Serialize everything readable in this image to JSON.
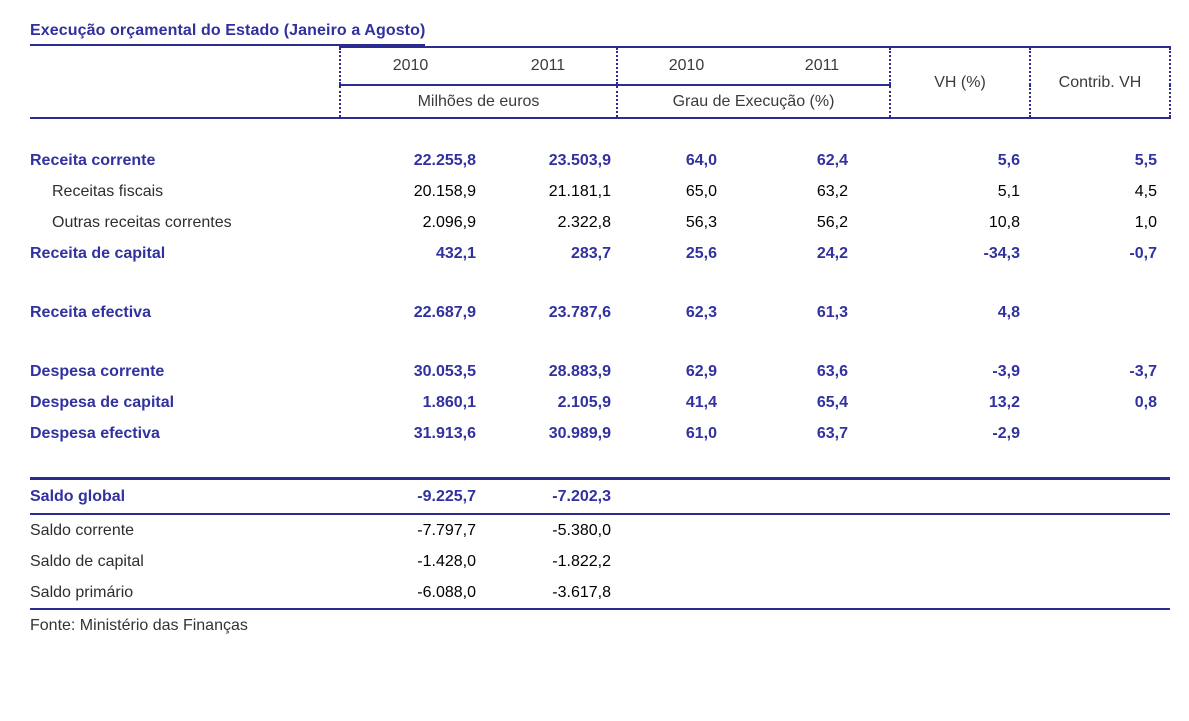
{
  "title": "Execução orçamental do  Estado (Janeiro a Agosto)",
  "header": {
    "millions_2010": "2010",
    "millions_2011": "2011",
    "millions_group": "Milhões de euros",
    "execution_2010": "2010",
    "execution_2011": "2011",
    "execution_group": "Grau de Execução (%)",
    "vh": "VH (%)",
    "contrib_vh": "Contrib. VH"
  },
  "rows": [
    {
      "label": "Receita corrente",
      "m2010": "22.255,8",
      "m2011": "23.503,9",
      "g2010": "64,0",
      "g2011": "62,4",
      "vh": "5,6",
      "contrib": "5,5"
    },
    {
      "label": "Receitas fiscais",
      "m2010": "20.158,9",
      "m2011": "21.181,1",
      "g2010": "65,0",
      "g2011": "63,2",
      "vh": "5,1",
      "contrib": "4,5"
    },
    {
      "label": "Outras receitas correntes",
      "m2010": "2.096,9",
      "m2011": "2.322,8",
      "g2010": "56,3",
      "g2011": "56,2",
      "vh": "10,8",
      "contrib": "1,0"
    },
    {
      "label": "Receita de capital",
      "m2010": "432,1",
      "m2011": "283,7",
      "g2010": "25,6",
      "g2011": "24,2",
      "vh": "-34,3",
      "contrib": "-0,7"
    },
    {
      "label": "Receita efectiva",
      "m2010": "22.687,9",
      "m2011": "23.787,6",
      "g2010": "62,3",
      "g2011": "61,3",
      "vh": "4,8",
      "contrib": ""
    },
    {
      "label": "Despesa corrente",
      "m2010": "30.053,5",
      "m2011": "28.883,9",
      "g2010": "62,9",
      "g2011": "63,6",
      "vh": "-3,9",
      "contrib": "-3,7"
    },
    {
      "label": "Despesa de capital",
      "m2010": "1.860,1",
      "m2011": "2.105,9",
      "g2010": "41,4",
      "g2011": "65,4",
      "vh": "13,2",
      "contrib": "0,8"
    },
    {
      "label": "Despesa efectiva",
      "m2010": "31.913,6",
      "m2011": "30.989,9",
      "g2010": "61,0",
      "g2011": "63,7",
      "vh": "-2,9",
      "contrib": ""
    },
    {
      "label": "Saldo global",
      "m2010": "-9.225,7",
      "m2011": "-7.202,3",
      "g2010": "",
      "g2011": "",
      "vh": "",
      "contrib": ""
    },
    {
      "label": "Saldo corrente",
      "m2010": "-7.797,7",
      "m2011": "-5.380,0",
      "g2010": "",
      "g2011": "",
      "vh": "",
      "contrib": ""
    },
    {
      "label": "Saldo de capital",
      "m2010": "-1.428,0",
      "m2011": "-1.822,2",
      "g2010": "",
      "g2011": "",
      "vh": "",
      "contrib": ""
    },
    {
      "label": "Saldo primário",
      "m2010": "-6.088,0",
      "m2011": "-3.617,8",
      "g2010": "",
      "g2011": "",
      "vh": "",
      "contrib": ""
    }
  ],
  "source": "Fonte: Ministério das Finanças",
  "colors": {
    "accent_text": "#31319f",
    "border_navy": "#2c2c90",
    "body_text": "#2e2e2e"
  }
}
